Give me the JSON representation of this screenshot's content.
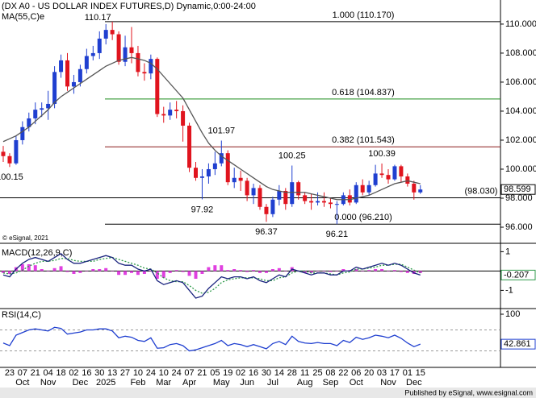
{
  "chart_data": [
    {
      "type": "candlestick",
      "title": "(DX A0 - US DOLLAR INDEX FUTURES,D) Dynamic,0:00-24:00",
      "ma_name": "MA(55,C)e",
      "copyright": "© eSignal, 2021",
      "footer": "Published by eSignal, www.esignal.com",
      "categories": [
        null,
        "23",
        null,
        "07",
        null,
        "21",
        null,
        "04",
        null,
        "18",
        null,
        "02",
        null,
        "16",
        null,
        "30",
        null,
        "13",
        null,
        "27",
        null,
        "10",
        null,
        "24",
        null,
        "10",
        null,
        "24",
        null,
        "07",
        null,
        "21",
        null,
        "05",
        null,
        "19",
        null,
        "02",
        null,
        "16",
        null,
        "30",
        null,
        "14",
        null,
        "28",
        null,
        "11",
        null,
        "25",
        null,
        "08",
        null,
        "22",
        null,
        "06",
        null,
        "20",
        null,
        "03",
        null,
        "17",
        null,
        "01",
        null,
        "15"
      ],
      "months": [
        null,
        null,
        null,
        "Oct",
        null,
        null,
        null,
        "Nov",
        null,
        null,
        null,
        null,
        "Dec",
        null,
        null,
        null,
        "2025",
        null,
        null,
        null,
        null,
        "Feb",
        null,
        null,
        null,
        "Mar",
        null,
        null,
        null,
        "Apr",
        null,
        null,
        null,
        null,
        "May",
        null,
        null,
        null,
        "Jun",
        null,
        null,
        null,
        "Jul",
        null,
        null,
        null,
        null,
        "Aug",
        null,
        null,
        null,
        "Sep",
        null,
        null,
        null,
        "Oct",
        null,
        null,
        null,
        null,
        "Nov",
        null,
        null,
        null,
        "Dec",
        null
      ],
      "open": [
        101.2,
        100.9,
        100.4,
        102.0,
        102.9,
        103.5,
        104.1,
        104.2,
        104.5,
        106.7,
        107.5,
        105.7,
        106.0,
        106.9,
        107.8,
        108.0,
        109.0,
        109.6,
        109.3,
        107.4,
        108.4,
        108.0,
        106.7,
        106.6,
        107.6,
        103.8,
        103.7,
        104.1,
        104.0,
        103.0,
        100.1,
        99.4,
        99.5,
        100.0,
        100.4,
        101.1,
        99.1,
        99.4,
        99.2,
        98.2,
        98.7,
        97.4,
        96.9,
        97.9,
        98.5,
        97.6,
        99.1,
        98.2,
        97.8,
        97.7,
        97.8,
        97.7,
        97.6,
        97.6,
        98.2,
        97.7,
        98.9,
        98.4,
        98.9,
        99.7,
        99.6,
        99.3,
        100.2,
        99.5,
        99.0,
        98.4
      ],
      "high": [
        101.6,
        101.1,
        102.3,
        103.3,
        103.9,
        104.6,
        104.6,
        105.4,
        107.1,
        107.9,
        108.0,
        106.5,
        107.2,
        108.3,
        108.5,
        109.5,
        110.0,
        110.17,
        109.5,
        109.2,
        109.8,
        108.5,
        107.3,
        107.9,
        107.7,
        104.3,
        104.6,
        104.7,
        104.4,
        103.2,
        100.5,
        100.0,
        100.4,
        101.2,
        101.97,
        101.3,
        100.1,
        99.9,
        99.4,
        99.0,
        98.9,
        97.6,
        98.1,
        98.9,
        98.7,
        100.25,
        99.2,
        98.4,
        98.3,
        98.4,
        98.4,
        98.0,
        97.8,
        98.4,
        98.6,
        99.1,
        99.3,
        99.2,
        100.3,
        100.39,
        100.0,
        100.3,
        100.3,
        99.7,
        99.2,
        98.9
      ],
      "low": [
        100.5,
        100.15,
        100.3,
        101.7,
        102.6,
        103.1,
        103.6,
        103.4,
        104.2,
        106.3,
        105.4,
        105.2,
        105.7,
        106.6,
        107.5,
        107.6,
        108.6,
        108.9,
        107.2,
        107.1,
        107.3,
        106.4,
        106.1,
        106.2,
        103.6,
        103.2,
        103.4,
        103.5,
        101.9,
        99.8,
        99.2,
        97.92,
        99.0,
        99.6,
        100.2,
        98.9,
        98.7,
        98.5,
        97.8,
        97.6,
        97.2,
        96.37,
        96.7,
        97.5,
        97.2,
        97.4,
        97.9,
        97.6,
        97.2,
        97.5,
        97.4,
        97.3,
        96.21,
        97.5,
        97.5,
        97.6,
        98.2,
        98.2,
        98.8,
        99.4,
        99.0,
        99.2,
        99.1,
        98.8,
        97.9,
        98.3
      ],
      "close": [
        100.9,
        100.4,
        102.0,
        102.9,
        103.5,
        104.1,
        104.2,
        104.5,
        106.7,
        107.5,
        105.7,
        106.0,
        106.9,
        107.8,
        108.0,
        109.0,
        109.6,
        109.3,
        107.4,
        108.4,
        108.0,
        106.7,
        106.6,
        107.6,
        103.8,
        103.7,
        104.1,
        104.0,
        103.0,
        100.1,
        99.4,
        99.5,
        100.0,
        100.4,
        101.1,
        99.1,
        99.4,
        99.2,
        98.2,
        98.7,
        97.4,
        96.9,
        97.9,
        98.5,
        97.6,
        99.1,
        98.2,
        97.8,
        97.7,
        97.8,
        97.7,
        97.6,
        97.6,
        98.2,
        97.7,
        98.9,
        98.4,
        98.9,
        99.7,
        99.6,
        99.3,
        100.2,
        99.5,
        99.0,
        98.4,
        98.599
      ],
      "high_labels": [
        null,
        null,
        null,
        null,
        null,
        null,
        null,
        null,
        null,
        null,
        null,
        null,
        null,
        null,
        null,
        null,
        null,
        "110.17",
        null,
        null,
        null,
        null,
        null,
        null,
        null,
        null,
        null,
        null,
        null,
        null,
        null,
        null,
        null,
        null,
        "101.97",
        null,
        null,
        null,
        null,
        null,
        null,
        null,
        null,
        null,
        null,
        "100.25",
        null,
        null,
        null,
        null,
        null,
        null,
        null,
        null,
        null,
        null,
        null,
        null,
        null,
        "100.39",
        null,
        null,
        null,
        null,
        null,
        null
      ],
      "low_labels": [
        null,
        "100.15",
        null,
        null,
        null,
        null,
        null,
        null,
        null,
        null,
        null,
        null,
        null,
        null,
        null,
        null,
        null,
        null,
        null,
        null,
        null,
        null,
        null,
        null,
        null,
        null,
        null,
        null,
        null,
        null,
        null,
        "97.92",
        null,
        null,
        null,
        null,
        null,
        null,
        null,
        null,
        null,
        "96.37",
        null,
        null,
        null,
        null,
        null,
        null,
        null,
        null,
        null,
        null,
        "96.21",
        null,
        null,
        null,
        null,
        null,
        null,
        null,
        null,
        null,
        null,
        null,
        null,
        null
      ],
      "ma": [
        101.9,
        102.1,
        102.3,
        102.6,
        102.9,
        103.3,
        103.7,
        104.1,
        104.6,
        105.0,
        105.3,
        105.6,
        105.9,
        106.2,
        106.5,
        106.8,
        107.1,
        107.3,
        107.5,
        107.6,
        107.7,
        107.6,
        107.5,
        107.3,
        106.9,
        106.4,
        105.9,
        105.4,
        104.9,
        104.1,
        103.3,
        102.5,
        101.8,
        101.3,
        100.9,
        100.6,
        100.3,
        100.0,
        99.7,
        99.4,
        99.1,
        98.8,
        98.6,
        98.5,
        98.4,
        98.4,
        98.4,
        98.4,
        98.3,
        98.2,
        98.1,
        98.0,
        97.9,
        97.9,
        97.9,
        98.0,
        98.1,
        98.2,
        98.4,
        98.6,
        98.8,
        99.0,
        99.1,
        99.2,
        99.1,
        99.0
      ],
      "up_color": "#1f3fd0",
      "down_color": "#e0141e",
      "ma_color": "#555555",
      "levels": [
        {
          "label": "1.000 (110.170)",
          "value": 110.17,
          "color": "#000000"
        },
        {
          "label": "0.618 (104.837)",
          "value": 104.837,
          "color": "#1a8a1a"
        },
        {
          "label": "0.382 (101.543)",
          "value": 101.543,
          "color": "#8b1a1a"
        },
        {
          "label": "(98.030)",
          "value": 98.03,
          "color": "#000000",
          "full": true
        },
        {
          "label": "0.000 (96.210)",
          "value": 96.21,
          "color": "#000000"
        }
      ],
      "ylim": [
        95.0,
        111.44
      ],
      "yticks": [
        {
          "value": 96,
          "label": "96.000"
        },
        {
          "value": 98,
          "label": "98.000"
        },
        {
          "value": 100,
          "label": "100.000"
        },
        {
          "value": 102,
          "label": "102.000"
        },
        {
          "value": 104,
          "label": "104.000"
        },
        {
          "value": 106,
          "label": "106.000"
        },
        {
          "value": 108,
          "label": "108.000"
        },
        {
          "value": 110,
          "label": "110.000"
        }
      ]
    },
    {
      "type": "macd",
      "title": "MACD(12,26,9,C)",
      "macd": [
        -0.2,
        -0.3,
        0.1,
        0.4,
        0.6,
        0.7,
        0.6,
        0.5,
        0.7,
        0.9,
        0.6,
        0.4,
        0.4,
        0.5,
        0.6,
        0.7,
        0.8,
        0.7,
        0.4,
        0.3,
        0.3,
        0.1,
        0.0,
        0.1,
        -0.5,
        -0.7,
        -0.6,
        -0.5,
        -0.6,
        -1.0,
        -1.4,
        -1.3,
        -0.9,
        -0.6,
        -0.3,
        -0.4,
        -0.3,
        -0.3,
        -0.4,
        -0.3,
        -0.5,
        -0.6,
        -0.4,
        -0.2,
        -0.3,
        0.1,
        0.0,
        -0.1,
        -0.2,
        -0.1,
        -0.1,
        -0.2,
        -0.2,
        0.0,
        0.0,
        0.2,
        0.1,
        0.2,
        0.3,
        0.4,
        0.3,
        0.4,
        0.3,
        0.1,
        -0.1,
        -0.207
      ],
      "signal": [
        -0.1,
        -0.15,
        -0.1,
        0.05,
        0.25,
        0.4,
        0.5,
        0.5,
        0.55,
        0.65,
        0.65,
        0.55,
        0.5,
        0.5,
        0.5,
        0.6,
        0.65,
        0.7,
        0.6,
        0.5,
        0.4,
        0.3,
        0.15,
        0.1,
        -0.1,
        -0.35,
        -0.5,
        -0.55,
        -0.55,
        -0.75,
        -1.0,
        -1.15,
        -1.1,
        -0.9,
        -0.6,
        -0.45,
        -0.4,
        -0.35,
        -0.35,
        -0.35,
        -0.4,
        -0.5,
        -0.5,
        -0.35,
        -0.3,
        -0.1,
        0.0,
        0.0,
        -0.1,
        -0.1,
        -0.1,
        -0.15,
        -0.2,
        -0.1,
        -0.05,
        0.1,
        0.1,
        0.15,
        0.2,
        0.3,
        0.3,
        0.35,
        0.35,
        0.2,
        0.05,
        -0.1
      ],
      "macd_color": "#1a237e",
      "signal_color": "#2e9a4a",
      "hist_color": "#e040e0",
      "ylim": [
        -1.9,
        1.35
      ],
      "yticks": [
        1,
        -1
      ]
    },
    {
      "type": "rsi",
      "title": "RSI(14,C)",
      "values": [
        45,
        40,
        60,
        65,
        70,
        72,
        70,
        68,
        75,
        73,
        62,
        64,
        66,
        70,
        70,
        72,
        72,
        68,
        55,
        58,
        56,
        50,
        48,
        55,
        35,
        36,
        42,
        44,
        40,
        30,
        32,
        36,
        40,
        44,
        50,
        40,
        44,
        42,
        38,
        42,
        38,
        34,
        44,
        48,
        42,
        58,
        48,
        45,
        44,
        46,
        44,
        44,
        40,
        50,
        46,
        56,
        52,
        55,
        60,
        58,
        55,
        60,
        54,
        45,
        38,
        42.861
      ],
      "color": "#1f3fd0",
      "levels": [
        70,
        30
      ],
      "ylim": [
        0,
        100
      ],
      "yticks": [
        100
      ]
    }
  ]
}
